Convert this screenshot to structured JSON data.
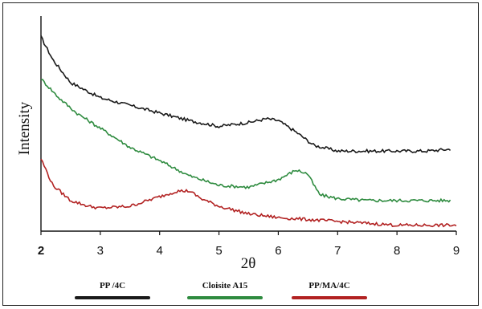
{
  "chart_data": {
    "type": "line",
    "title": "",
    "xlabel": "2θ",
    "ylabel": "Intensity",
    "xlim": [
      2,
      9
    ],
    "ylim": [
      0,
      100
    ],
    "x_ticks": [
      "2",
      "3",
      "4",
      "5",
      "6",
      "7",
      "8",
      "9"
    ],
    "grid": false,
    "legend_position": "bottom",
    "series": [
      {
        "name": "PP /4C",
        "color": "#1a1a1a",
        "x": [
          2.0,
          2.2,
          2.5,
          3.0,
          3.5,
          4.0,
          4.5,
          5.0,
          5.5,
          5.8,
          6.0,
          6.3,
          6.6,
          7.0,
          7.5,
          8.0,
          8.5,
          8.9
        ],
        "y": [
          100,
          88,
          76,
          68,
          64,
          60,
          56,
          53,
          55,
          57,
          56,
          50,
          43,
          40,
          40,
          40,
          40,
          41
        ]
      },
      {
        "name": "Cloisite A15",
        "color": "#2e8b3f",
        "x": [
          2.0,
          2.3,
          2.6,
          3.0,
          3.5,
          4.0,
          4.5,
          5.0,
          5.5,
          6.0,
          6.3,
          6.5,
          6.6,
          6.7,
          7.0,
          7.5,
          8.0,
          8.5,
          8.9
        ],
        "y": [
          78,
          68,
          60,
          52,
          42,
          35,
          27,
          22,
          21,
          25,
          30,
          28,
          22,
          17,
          15,
          14,
          14,
          14,
          14
        ]
      },
      {
        "name": "PP/MA/4C",
        "color": "#b22222",
        "x": [
          2.0,
          2.2,
          2.5,
          2.8,
          3.0,
          3.5,
          4.0,
          4.3,
          4.5,
          4.7,
          5.0,
          5.5,
          6.0,
          6.5,
          7.0,
          7.5,
          8.0,
          8.5,
          9.0
        ],
        "y": [
          36,
          22,
          14,
          11,
          10,
          11,
          16,
          19,
          19,
          15,
          11,
          7,
          5,
          4,
          3,
          2,
          1,
          1,
          1
        ]
      }
    ]
  }
}
